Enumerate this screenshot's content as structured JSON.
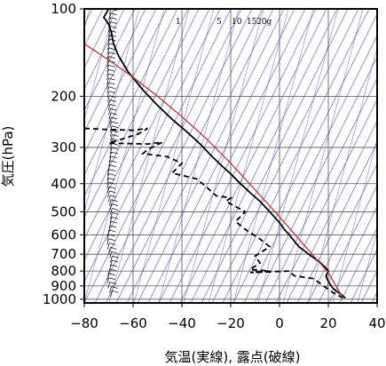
{
  "chart_data": {
    "type": "skew-t log-p",
    "xlabel": "気温(実線), 露点(破線)",
    "ylabel": "気圧(hPa)",
    "xlim": [
      -80,
      40
    ],
    "ylim": [
      1030,
      100
    ],
    "y_scale": "log",
    "x_ticks": [
      -80,
      -60,
      -40,
      -20,
      0,
      20,
      40
    ],
    "x_tick_labels": [
      "−80",
      "−60",
      "−40",
      "−20",
      "0",
      "20",
      "40"
    ],
    "y_ticks": [
      100,
      200,
      300,
      400,
      500,
      600,
      700,
      800,
      900,
      1000
    ],
    "y_tick_labels": [
      "100",
      "200",
      "300",
      "400",
      "500",
      "600",
      "700",
      "800",
      "900",
      "1000"
    ],
    "mixing_ratio_labels": [
      "1",
      "5",
      "10",
      "15",
      "20g"
    ],
    "grid": true,
    "colors": {
      "temperature": "#000000",
      "dewpoint": "#000000",
      "reference_profile": "#dd2222",
      "skewed_isotherms": "#4a4ae0",
      "grid": "#555555",
      "wind_barbs": "#000000"
    },
    "series": [
      {
        "style": "solid",
        "points": [
          [
            -70,
            100
          ],
          [
            -72,
            107
          ],
          [
            -70,
            113
          ],
          [
            -69,
            120
          ],
          [
            -68,
            132
          ],
          [
            -66,
            145
          ],
          [
            -62,
            165
          ],
          [
            -56,
            190
          ],
          [
            -50,
            215
          ],
          [
            -44,
            240
          ],
          [
            -38,
            265
          ],
          [
            -32,
            295
          ],
          [
            -28,
            320
          ],
          [
            -24,
            345
          ],
          [
            -20,
            370
          ],
          [
            -16,
            400
          ],
          [
            -12,
            430
          ],
          [
            -8,
            460
          ],
          [
            -4,
            500
          ],
          [
            0,
            545
          ],
          [
            2,
            575
          ],
          [
            4,
            600
          ],
          [
            6,
            630
          ],
          [
            8,
            660
          ],
          [
            12,
            700
          ],
          [
            16,
            740
          ],
          [
            19,
            780
          ],
          [
            20,
            800
          ],
          [
            19,
            830
          ],
          [
            20,
            870
          ],
          [
            22,
            920
          ],
          [
            25,
            960
          ],
          [
            27,
            990
          ]
        ]
      },
      {
        "style": "dashed",
        "points": [
          [
            -80,
            258
          ],
          [
            -72,
            260
          ],
          [
            -60,
            262
          ],
          [
            -54,
            258
          ],
          [
            -58,
            270
          ],
          [
            -70,
            290
          ],
          [
            -54,
            292
          ],
          [
            -48,
            288
          ],
          [
            -54,
            305
          ],
          [
            -56,
            315
          ],
          [
            -46,
            323
          ],
          [
            -40,
            340
          ],
          [
            -44,
            368
          ],
          [
            -34,
            385
          ],
          [
            -30,
            410
          ],
          [
            -26,
            440
          ],
          [
            -20,
            448
          ],
          [
            -22,
            460
          ],
          [
            -14,
            500
          ],
          [
            -18,
            540
          ],
          [
            -14,
            575
          ],
          [
            -8,
            620
          ],
          [
            -4,
            660
          ],
          [
            -10,
            710
          ],
          [
            -8,
            750
          ],
          [
            -12,
            790
          ],
          [
            -4,
            800
          ],
          [
            -12,
            810
          ],
          [
            4,
            800
          ],
          [
            6,
            830
          ],
          [
            14,
            850
          ],
          [
            18,
            900
          ],
          [
            22,
            950
          ],
          [
            26,
            990
          ]
        ]
      },
      {
        "style": "solid-thin",
        "points": [
          [
            -80,
            132
          ],
          [
            -70,
            150
          ],
          [
            -60,
            172
          ],
          [
            -50,
            200
          ],
          [
            -40,
            235
          ],
          [
            -30,
            280
          ],
          [
            -20,
            340
          ],
          [
            -10,
            420
          ],
          [
            0,
            520
          ],
          [
            10,
            650
          ],
          [
            20,
            810
          ],
          [
            26,
            990
          ]
        ]
      }
    ]
  }
}
